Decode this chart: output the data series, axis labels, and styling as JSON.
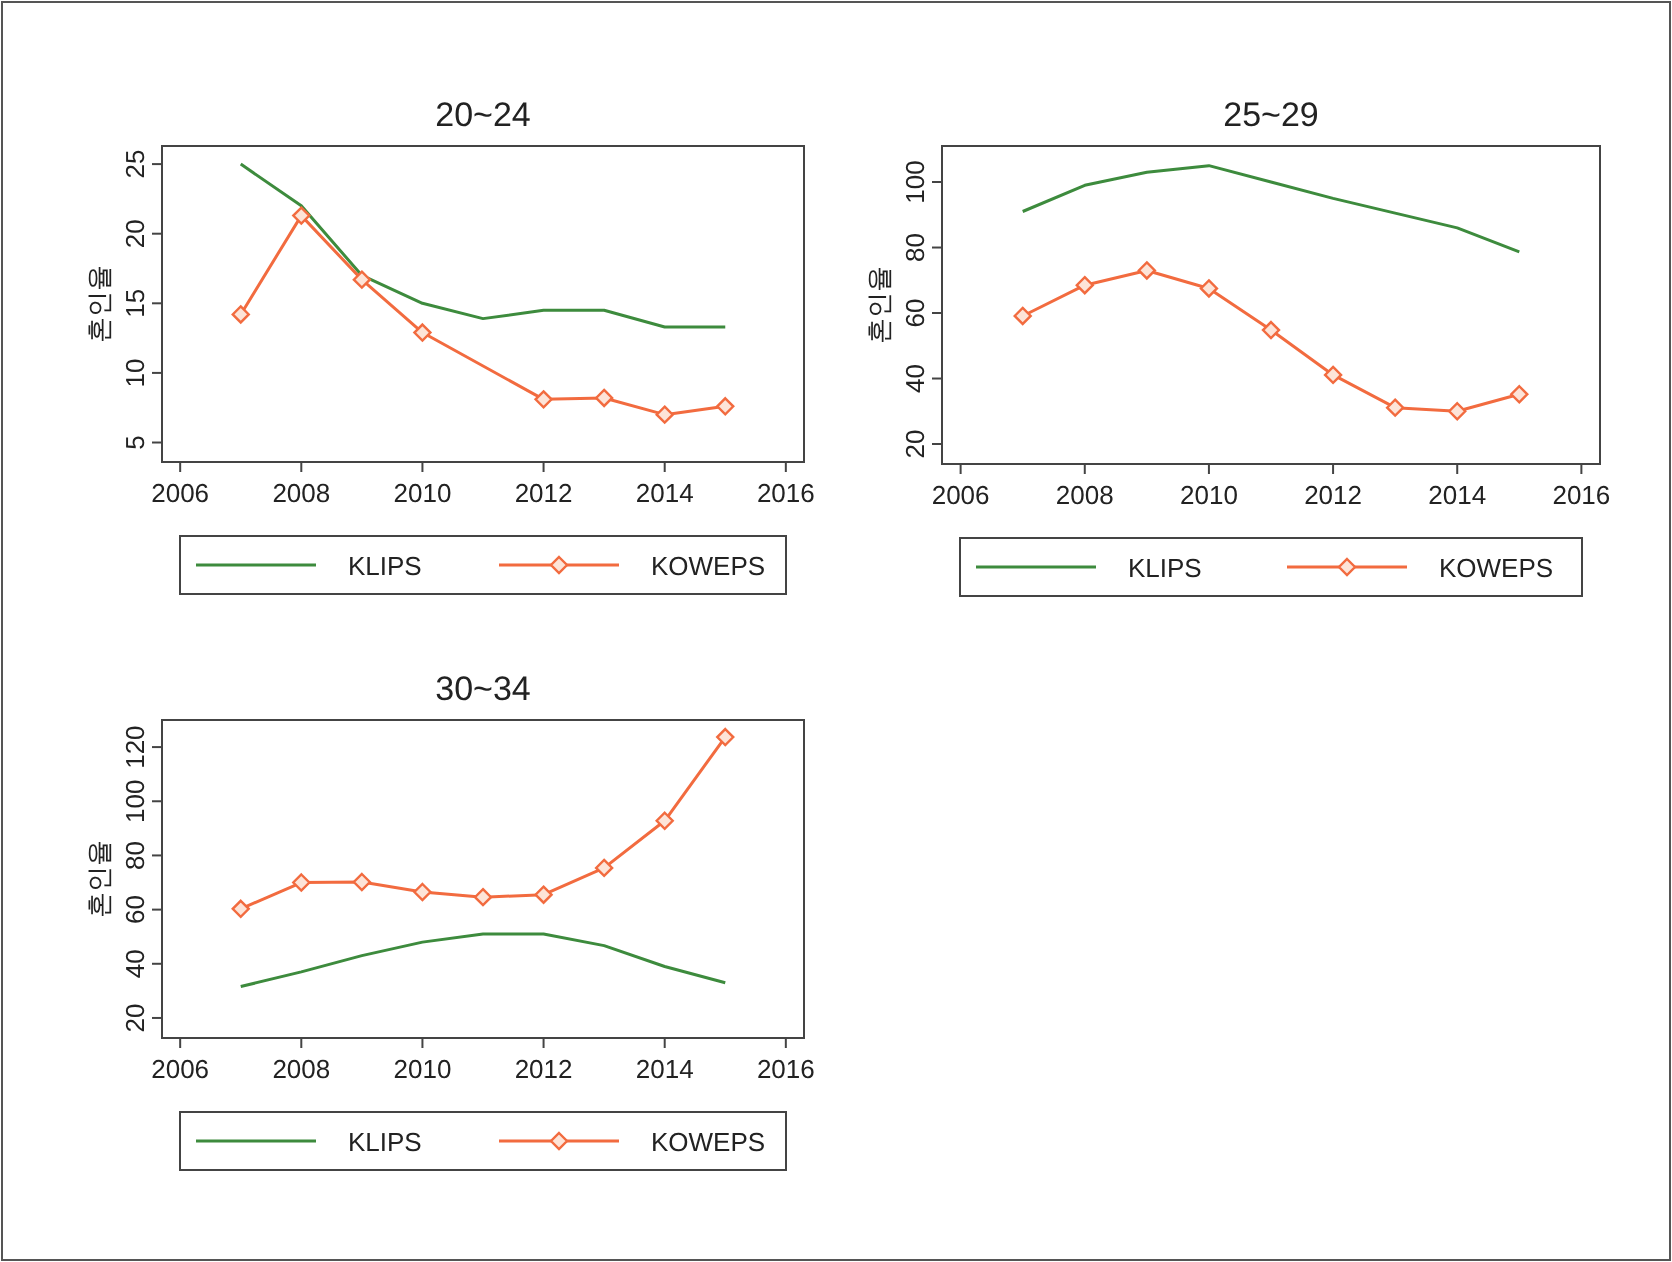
{
  "chart_data": [
    {
      "type": "line",
      "title": "20~24",
      "ylabel": "혼인율",
      "xlim": [
        2005.7,
        2016.3
      ],
      "xticks": [
        2006,
        2008,
        2010,
        2012,
        2014,
        2016
      ],
      "ylim": [
        3.6,
        26.3
      ],
      "yticks": [
        5,
        10,
        15,
        20,
        25
      ],
      "grid": false,
      "legend": "bottom",
      "series": [
        {
          "name": "KLIPS",
          "color": "#3d8b3d",
          "marker": "none",
          "x": [
            2007,
            2008,
            2009,
            2010,
            2011,
            2012,
            2013,
            2014,
            2015
          ],
          "values": [
            25,
            22,
            17,
            15,
            13.9,
            14.5,
            14.5,
            13.3,
            13.3
          ]
        },
        {
          "name": "KOWEPS",
          "color": "#f26b3f",
          "marker": "diamond",
          "x": [
            2007,
            2008,
            2009,
            2010,
            2012,
            2013,
            2014,
            2015
          ],
          "values": [
            14.2,
            21.3,
            16.7,
            12.9,
            8.1,
            8.2,
            7.0,
            7.6
          ]
        }
      ]
    },
    {
      "type": "line",
      "title": "25~29",
      "ylabel": "혼인율",
      "xlim": [
        2005.7,
        2016.3
      ],
      "xticks": [
        2006,
        2008,
        2010,
        2012,
        2014,
        2016
      ],
      "ylim": [
        13.9,
        111
      ],
      "yticks": [
        20,
        40,
        60,
        80,
        100
      ],
      "grid": false,
      "legend": "bottom",
      "series": [
        {
          "name": "KLIPS",
          "color": "#3d8b3d",
          "marker": "none",
          "x": [
            2007,
            2008,
            2009,
            2010,
            2011,
            2012,
            2013,
            2014,
            2015
          ],
          "values": [
            91,
            99,
            103,
            105,
            100,
            95,
            90.5,
            86,
            78.7
          ]
        },
        {
          "name": "KOWEPS",
          "color": "#f26b3f",
          "marker": "diamond",
          "x": [
            2007,
            2008,
            2009,
            2010,
            2011,
            2012,
            2013,
            2014,
            2015
          ],
          "values": [
            59.1,
            68.5,
            73,
            67.5,
            54.8,
            41.1,
            31.1,
            30,
            35.2
          ]
        }
      ]
    },
    {
      "type": "line",
      "title": "30~34",
      "ylabel": "혼인율",
      "xlim": [
        2005.7,
        2016.3
      ],
      "xticks": [
        2006,
        2008,
        2010,
        2012,
        2014,
        2016
      ],
      "ylim": [
        12.6,
        130
      ],
      "yticks": [
        20,
        40,
        60,
        80,
        100,
        120
      ],
      "grid": false,
      "legend": "bottom",
      "series": [
        {
          "name": "KLIPS",
          "color": "#3d8b3d",
          "marker": "none",
          "x": [
            2007,
            2008,
            2009,
            2010,
            2011,
            2012,
            2013,
            2014,
            2015
          ],
          "values": [
            31.6,
            37,
            43,
            48,
            51,
            51,
            46.7,
            39,
            33
          ]
        },
        {
          "name": "KOWEPS",
          "color": "#f26b3f",
          "marker": "diamond",
          "x": [
            2007,
            2008,
            2009,
            2010,
            2011,
            2012,
            2013,
            2014,
            2015
          ],
          "values": [
            60.3,
            70,
            70.2,
            66.5,
            64.6,
            65.5,
            75.4,
            92.8,
            123.7
          ]
        }
      ]
    }
  ]
}
